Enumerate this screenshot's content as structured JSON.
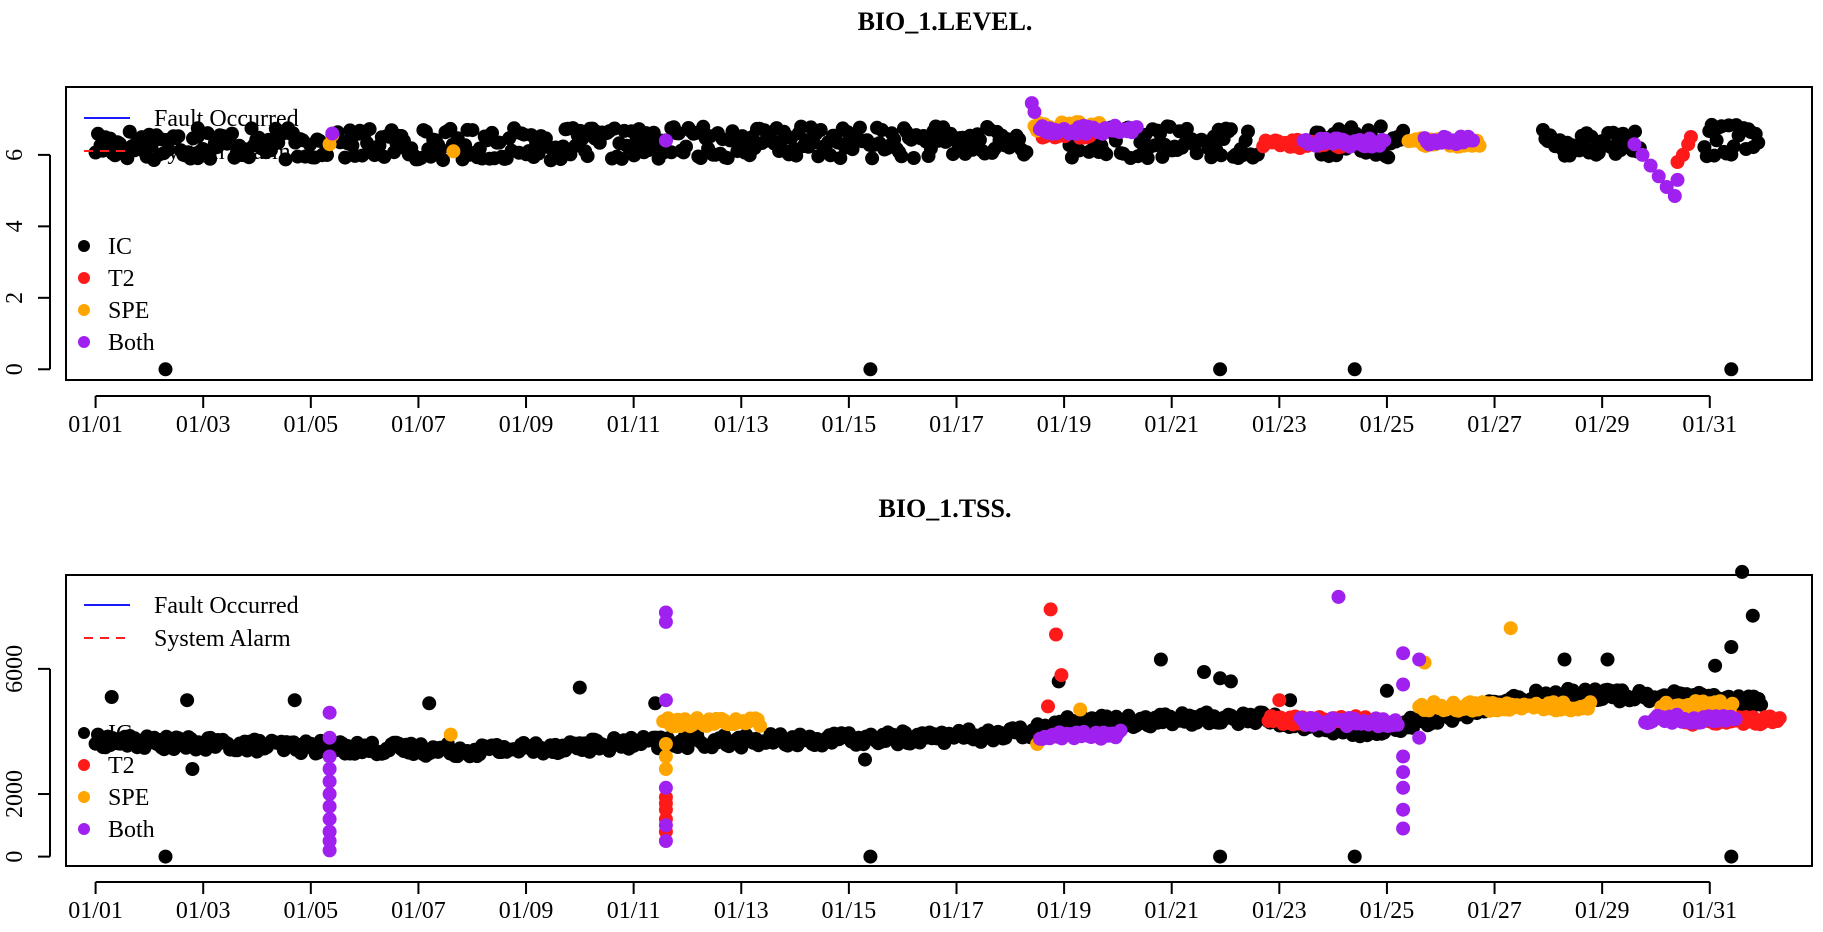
{
  "chart_data": [
    {
      "type": "scatter",
      "title": "BIO_1.LEVEL.",
      "xlabel": "",
      "ylabel": "",
      "x_ticks": [
        "01/01",
        "01/03",
        "01/05",
        "01/07",
        "01/09",
        "01/11",
        "01/13",
        "01/15",
        "01/17",
        "01/19",
        "01/21",
        "01/23",
        "01/25",
        "01/27",
        "01/29",
        "01/31"
      ],
      "xlim": [
        0.45,
        32.9
      ],
      "ylim": [
        -0.3,
        7.9
      ],
      "y_ticks": [
        "0",
        "2",
        "4",
        "6"
      ],
      "y_tick_values": [
        0,
        2,
        4,
        6
      ],
      "grid": false,
      "legend_lines": [
        {
          "label": "Fault Occurred",
          "color": "#1a1aff",
          "style": "solid"
        },
        {
          "label": "System Alarm",
          "color": "#ff2020",
          "style": "dashed"
        }
      ],
      "legend_points": [
        {
          "label": "IC",
          "color": "#000000"
        },
        {
          "label": "T2",
          "color": "#ff1a1a"
        },
        {
          "label": "SPE",
          "color": "#ffa500"
        },
        {
          "label": "Both",
          "color": "#a020f0"
        }
      ],
      "legend_placement": "top-left",
      "colors": {
        "IC": "#000000",
        "T2": "#ff1a1a",
        "SPE": "#ffa500",
        "Both": "#a020f0"
      },
      "series": [
        {
          "category": "IC",
          "segments": [
            [
              1.0,
              6.3,
              0.22
            ],
            [
              2.9,
              6.3,
              0.2
            ],
            [
              5.5,
              6.3,
              0.2
            ],
            [
              11.7,
              6.35,
              0.2
            ],
            [
              19.1,
              6.35,
              0.2
            ],
            [
              23.6,
              6.35,
              0.2
            ],
            [
              27.9,
              6.35,
              0.12
            ],
            [
              30.9,
              6.4,
              0.22
            ]
          ],
          "points": [
            [
              2.3,
              0
            ],
            [
              15.4,
              0
            ],
            [
              21.9,
              0
            ],
            [
              24.4,
              0
            ],
            [
              31.4,
              0
            ],
            [
              11.7,
              6.75
            ],
            [
              18.1,
              6.4
            ]
          ]
        },
        {
          "category": "T2",
          "segments": [
            [
              22.7,
              6.3,
              0.25
            ],
            [
              18.6,
              6.6,
              0.2
            ]
          ],
          "points": [
            [
              30.4,
              5.8
            ],
            [
              30.5,
              6.0
            ],
            [
              30.6,
              6.3
            ],
            [
              30.65,
              6.5
            ]
          ]
        },
        {
          "category": "SPE",
          "segments": [
            [
              25.4,
              6.35,
              0.22
            ],
            [
              18.45,
              6.8,
              0.2
            ]
          ],
          "points": [
            [
              5.35,
              6.3
            ],
            [
              7.65,
              6.1
            ],
            [
              5.4,
              6.55
            ]
          ]
        },
        {
          "category": "Both",
          "segments": [
            [
              18.55,
              6.7,
              0.3
            ],
            [
              23.45,
              6.35,
              0.25
            ],
            [
              25.7,
              6.4,
              0.15
            ]
          ],
          "points": [
            [
              29.6,
              6.3
            ],
            [
              29.75,
              6.0
            ],
            [
              29.9,
              5.7
            ],
            [
              30.05,
              5.4
            ],
            [
              30.2,
              5.1
            ],
            [
              30.35,
              4.85
            ],
            [
              30.4,
              5.3
            ],
            [
              18.4,
              7.45
            ],
            [
              18.45,
              7.2
            ],
            [
              5.4,
              6.6
            ],
            [
              11.6,
              6.4
            ]
          ]
        }
      ]
    },
    {
      "type": "scatter",
      "title": "BIO_1.TSS.",
      "xlabel": "",
      "ylabel": "",
      "x_ticks": [
        "01/01",
        "01/03",
        "01/05",
        "01/07",
        "01/09",
        "01/11",
        "01/13",
        "01/15",
        "01/17",
        "01/19",
        "01/21",
        "01/23",
        "01/25",
        "01/27",
        "01/29",
        "01/31"
      ],
      "xlim": [
        0.45,
        32.9
      ],
      "ylim": [
        -300,
        9000
      ],
      "y_ticks": [
        "0",
        "2000",
        "6000"
      ],
      "y_tick_values": [
        0,
        2000,
        6000
      ],
      "grid": false,
      "legend_lines": [
        {
          "label": "Fault Occurred",
          "color": "#1a1aff",
          "style": "solid"
        },
        {
          "label": "System Alarm",
          "color": "#ff2020",
          "style": "dashed"
        }
      ],
      "legend_points": [
        {
          "label": "IC",
          "color": "#000000"
        },
        {
          "label": "T2",
          "color": "#ff1a1a"
        },
        {
          "label": "SPE",
          "color": "#ffa500"
        },
        {
          "label": "Both",
          "color": "#a020f0"
        }
      ],
      "legend_placement": "top-left",
      "colors": {
        "IC": "#000000",
        "T2": "#ff1a1a",
        "SPE": "#ffa500",
        "Both": "#a020f0"
      },
      "series": [
        {
          "category": "IC",
          "trend": [
            [
              1.0,
              3700
            ],
            [
              5.0,
              3500
            ],
            [
              8.0,
              3400
            ],
            [
              11.5,
              3650
            ],
            [
              15.0,
              3750
            ],
            [
              18.0,
              3900
            ],
            [
              19.2,
              4300
            ],
            [
              22.6,
              4450
            ],
            [
              24.5,
              4000
            ],
            [
              25.3,
              4200
            ],
            [
              28.0,
              5200
            ],
            [
              29.6,
              5150
            ],
            [
              30.8,
              5050
            ],
            [
              32.0,
              4900
            ]
          ],
          "points": [
            [
              1.3,
              5100
            ],
            [
              2.7,
              5000
            ],
            [
              4.7,
              5000
            ],
            [
              7.2,
              4900
            ],
            [
              10.0,
              5400
            ],
            [
              11.4,
              4900
            ],
            [
              2.8,
              2800
            ],
            [
              20.8,
              6300
            ],
            [
              21.6,
              5900
            ],
            [
              21.9,
              5700
            ],
            [
              22.1,
              5600
            ],
            [
              23.2,
              5000
            ],
            [
              25.0,
              5300
            ],
            [
              28.3,
              6300
            ],
            [
              29.1,
              6300
            ],
            [
              31.1,
              6100
            ],
            [
              31.4,
              6700
            ],
            [
              31.6,
              9100
            ],
            [
              31.8,
              7700
            ],
            [
              15.3,
              3100
            ],
            [
              2.3,
              0
            ],
            [
              15.4,
              0
            ],
            [
              21.9,
              0
            ],
            [
              24.4,
              0
            ],
            [
              31.4,
              0
            ],
            [
              18.9,
              5600
            ]
          ]
        },
        {
          "category": "T2",
          "segments": [
            [
              22.8,
              4350,
              0.3
            ],
            [
              30.5,
              4350,
              0.3
            ]
          ],
          "points": [
            [
              18.75,
              7900
            ],
            [
              18.85,
              7100
            ],
            [
              18.95,
              5800
            ],
            [
              18.7,
              4800
            ],
            [
              11.6,
              1900
            ],
            [
              11.6,
              1700
            ],
            [
              11.6,
              1500
            ],
            [
              11.6,
              1200
            ],
            [
              11.6,
              800
            ],
            [
              23.0,
              5000
            ]
          ]
        },
        {
          "category": "SPE",
          "segments": [
            [
              25.6,
              4800,
              0.28
            ],
            [
              26.5,
              4800,
              0.38
            ],
            [
              30.1,
              4850,
              0.22
            ],
            [
              11.55,
              4300,
              0.3
            ]
          ],
          "points": [
            [
              27.3,
              7300
            ],
            [
              19.3,
              4700
            ],
            [
              11.6,
              3200
            ],
            [
              11.6,
              3600
            ],
            [
              25.7,
              6200
            ],
            [
              7.6,
              3900
            ],
            [
              11.6,
              2800
            ],
            [
              18.5,
              3600
            ]
          ]
        },
        {
          "category": "Both",
          "segments": [
            [
              23.4,
              4300,
              0.3
            ],
            [
              29.8,
              4400,
              0.28
            ],
            [
              18.55,
              3900,
              0.25
            ]
          ],
          "points": [
            [
              24.1,
              8300
            ],
            [
              11.6,
              7800
            ],
            [
              11.6,
              7500
            ],
            [
              11.6,
              5000
            ],
            [
              11.6,
              2200
            ],
            [
              11.6,
              1000
            ],
            [
              11.6,
              500
            ],
            [
              5.35,
              4600
            ],
            [
              5.35,
              3800
            ],
            [
              5.35,
              3200
            ],
            [
              5.35,
              2800
            ],
            [
              5.35,
              2400
            ],
            [
              5.35,
              2000
            ],
            [
              5.35,
              1600
            ],
            [
              5.35,
              1200
            ],
            [
              5.35,
              800
            ],
            [
              5.35,
              500
            ],
            [
              5.35,
              200
            ],
            [
              25.3,
              6500
            ],
            [
              25.3,
              5500
            ],
            [
              25.3,
              3200
            ],
            [
              25.3,
              2700
            ],
            [
              25.3,
              2200
            ],
            [
              25.3,
              1500
            ],
            [
              25.3,
              900
            ],
            [
              25.6,
              3800
            ],
            [
              25.6,
              6300
            ]
          ]
        }
      ]
    }
  ]
}
